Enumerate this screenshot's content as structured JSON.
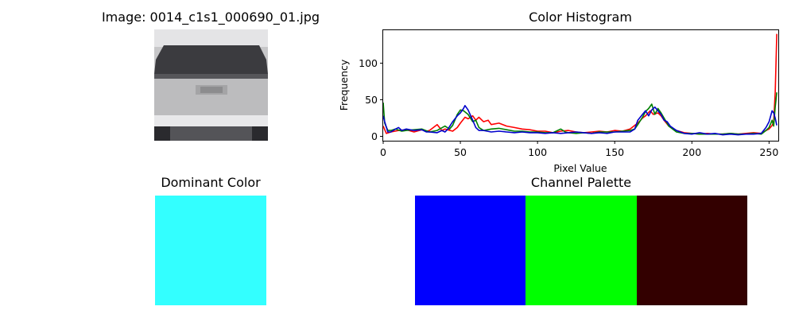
{
  "image_panel": {
    "title": "Image: 0014_c1s1_000690_01.jpg"
  },
  "dominant_panel": {
    "title": "Dominant Color",
    "color": "#33ffff"
  },
  "palette_panel": {
    "title": "Channel Palette",
    "colors": [
      "#0000ff",
      "#00ff00",
      "#330000"
    ]
  },
  "chart_data": {
    "type": "line",
    "title": "Color Histogram",
    "xlabel": "Pixel Value",
    "ylabel": "Frequency",
    "xlim": [
      0,
      256
    ],
    "ylim": [
      -6,
      145
    ],
    "xticks": [
      0,
      50,
      100,
      150,
      200,
      250
    ],
    "yticks": [
      0,
      50,
      100
    ],
    "grid": false,
    "series": [
      {
        "color": "#ff0000",
        "points": [
          [
            0,
            14
          ],
          [
            2,
            4
          ],
          [
            5,
            6
          ],
          [
            10,
            8
          ],
          [
            15,
            9
          ],
          [
            20,
            6
          ],
          [
            25,
            9
          ],
          [
            28,
            7
          ],
          [
            30,
            8
          ],
          [
            35,
            16
          ],
          [
            38,
            8
          ],
          [
            40,
            10
          ],
          [
            45,
            7
          ],
          [
            48,
            12
          ],
          [
            50,
            18
          ],
          [
            53,
            26
          ],
          [
            55,
            24
          ],
          [
            58,
            28
          ],
          [
            60,
            22
          ],
          [
            62,
            26
          ],
          [
            65,
            20
          ],
          [
            68,
            22
          ],
          [
            70,
            16
          ],
          [
            75,
            18
          ],
          [
            80,
            14
          ],
          [
            85,
            12
          ],
          [
            90,
            10
          ],
          [
            95,
            9
          ],
          [
            100,
            7
          ],
          [
            105,
            7
          ],
          [
            110,
            5
          ],
          [
            115,
            7
          ],
          [
            120,
            8
          ],
          [
            125,
            6
          ],
          [
            130,
            5
          ],
          [
            135,
            6
          ],
          [
            140,
            7
          ],
          [
            145,
            6
          ],
          [
            150,
            8
          ],
          [
            155,
            7
          ],
          [
            160,
            10
          ],
          [
            163,
            15
          ],
          [
            165,
            18
          ],
          [
            168,
            25
          ],
          [
            170,
            28
          ],
          [
            173,
            35
          ],
          [
            175,
            30
          ],
          [
            178,
            32
          ],
          [
            180,
            28
          ],
          [
            182,
            22
          ],
          [
            185,
            14
          ],
          [
            190,
            8
          ],
          [
            195,
            5
          ],
          [
            200,
            4
          ],
          [
            205,
            3
          ],
          [
            210,
            4
          ],
          [
            215,
            3
          ],
          [
            220,
            3
          ],
          [
            225,
            4
          ],
          [
            230,
            3
          ],
          [
            235,
            4
          ],
          [
            240,
            5
          ],
          [
            245,
            4
          ],
          [
            248,
            8
          ],
          [
            250,
            10
          ],
          [
            252,
            15
          ],
          [
            253,
            20
          ],
          [
            254,
            60
          ],
          [
            255,
            140
          ]
        ]
      },
      {
        "color": "#008000",
        "points": [
          [
            0,
            46
          ],
          [
            1,
            18
          ],
          [
            3,
            8
          ],
          [
            5,
            8
          ],
          [
            8,
            10
          ],
          [
            12,
            7
          ],
          [
            15,
            8
          ],
          [
            20,
            9
          ],
          [
            25,
            10
          ],
          [
            30,
            6
          ],
          [
            35,
            8
          ],
          [
            40,
            14
          ],
          [
            43,
            10
          ],
          [
            45,
            15
          ],
          [
            48,
            30
          ],
          [
            50,
            36
          ],
          [
            52,
            35
          ],
          [
            55,
            30
          ],
          [
            58,
            20
          ],
          [
            60,
            22
          ],
          [
            62,
            12
          ],
          [
            65,
            8
          ],
          [
            70,
            10
          ],
          [
            75,
            11
          ],
          [
            80,
            9
          ],
          [
            85,
            7
          ],
          [
            90,
            7
          ],
          [
            95,
            6
          ],
          [
            100,
            6
          ],
          [
            105,
            5
          ],
          [
            110,
            5
          ],
          [
            115,
            10
          ],
          [
            118,
            6
          ],
          [
            120,
            5
          ],
          [
            125,
            4
          ],
          [
            130,
            5
          ],
          [
            135,
            4
          ],
          [
            140,
            6
          ],
          [
            145,
            6
          ],
          [
            150,
            6
          ],
          [
            155,
            7
          ],
          [
            160,
            8
          ],
          [
            163,
            10
          ],
          [
            165,
            16
          ],
          [
            168,
            26
          ],
          [
            170,
            34
          ],
          [
            172,
            38
          ],
          [
            174,
            44
          ],
          [
            176,
            30
          ],
          [
            178,
            38
          ],
          [
            180,
            32
          ],
          [
            182,
            25
          ],
          [
            185,
            14
          ],
          [
            190,
            6
          ],
          [
            195,
            4
          ],
          [
            200,
            4
          ],
          [
            205,
            3
          ],
          [
            210,
            3
          ],
          [
            215,
            3
          ],
          [
            220,
            3
          ],
          [
            225,
            4
          ],
          [
            230,
            3
          ],
          [
            235,
            3
          ],
          [
            240,
            4
          ],
          [
            245,
            3
          ],
          [
            248,
            8
          ],
          [
            250,
            12
          ],
          [
            252,
            22
          ],
          [
            253,
            14
          ],
          [
            254,
            40
          ],
          [
            255,
            60
          ]
        ]
      },
      {
        "color": "#0000cc",
        "points": [
          [
            0,
            28
          ],
          [
            1,
            20
          ],
          [
            3,
            6
          ],
          [
            5,
            6
          ],
          [
            8,
            10
          ],
          [
            10,
            12
          ],
          [
            12,
            8
          ],
          [
            15,
            10
          ],
          [
            20,
            8
          ],
          [
            25,
            9
          ],
          [
            28,
            6
          ],
          [
            30,
            6
          ],
          [
            35,
            5
          ],
          [
            38,
            8
          ],
          [
            40,
            6
          ],
          [
            42,
            10
          ],
          [
            45,
            20
          ],
          [
            48,
            28
          ],
          [
            50,
            32
          ],
          [
            52,
            38
          ],
          [
            53,
            42
          ],
          [
            55,
            36
          ],
          [
            58,
            22
          ],
          [
            60,
            12
          ],
          [
            62,
            8
          ],
          [
            65,
            8
          ],
          [
            70,
            6
          ],
          [
            75,
            7
          ],
          [
            80,
            6
          ],
          [
            85,
            5
          ],
          [
            90,
            6
          ],
          [
            95,
            5
          ],
          [
            100,
            5
          ],
          [
            105,
            4
          ],
          [
            110,
            5
          ],
          [
            115,
            4
          ],
          [
            120,
            5
          ],
          [
            125,
            6
          ],
          [
            130,
            5
          ],
          [
            135,
            4
          ],
          [
            140,
            5
          ],
          [
            145,
            4
          ],
          [
            150,
            6
          ],
          [
            155,
            6
          ],
          [
            160,
            6
          ],
          [
            163,
            10
          ],
          [
            165,
            22
          ],
          [
            168,
            30
          ],
          [
            170,
            35
          ],
          [
            172,
            28
          ],
          [
            174,
            36
          ],
          [
            176,
            40
          ],
          [
            178,
            35
          ],
          [
            180,
            30
          ],
          [
            182,
            22
          ],
          [
            184,
            20
          ],
          [
            186,
            14
          ],
          [
            190,
            8
          ],
          [
            195,
            4
          ],
          [
            200,
            3
          ],
          [
            205,
            5
          ],
          [
            210,
            3
          ],
          [
            215,
            4
          ],
          [
            220,
            2
          ],
          [
            225,
            3
          ],
          [
            230,
            2
          ],
          [
            235,
            3
          ],
          [
            240,
            3
          ],
          [
            245,
            4
          ],
          [
            248,
            12
          ],
          [
            250,
            20
          ],
          [
            252,
            35
          ],
          [
            253,
            32
          ],
          [
            254,
            25
          ],
          [
            255,
            15
          ]
        ]
      }
    ]
  }
}
